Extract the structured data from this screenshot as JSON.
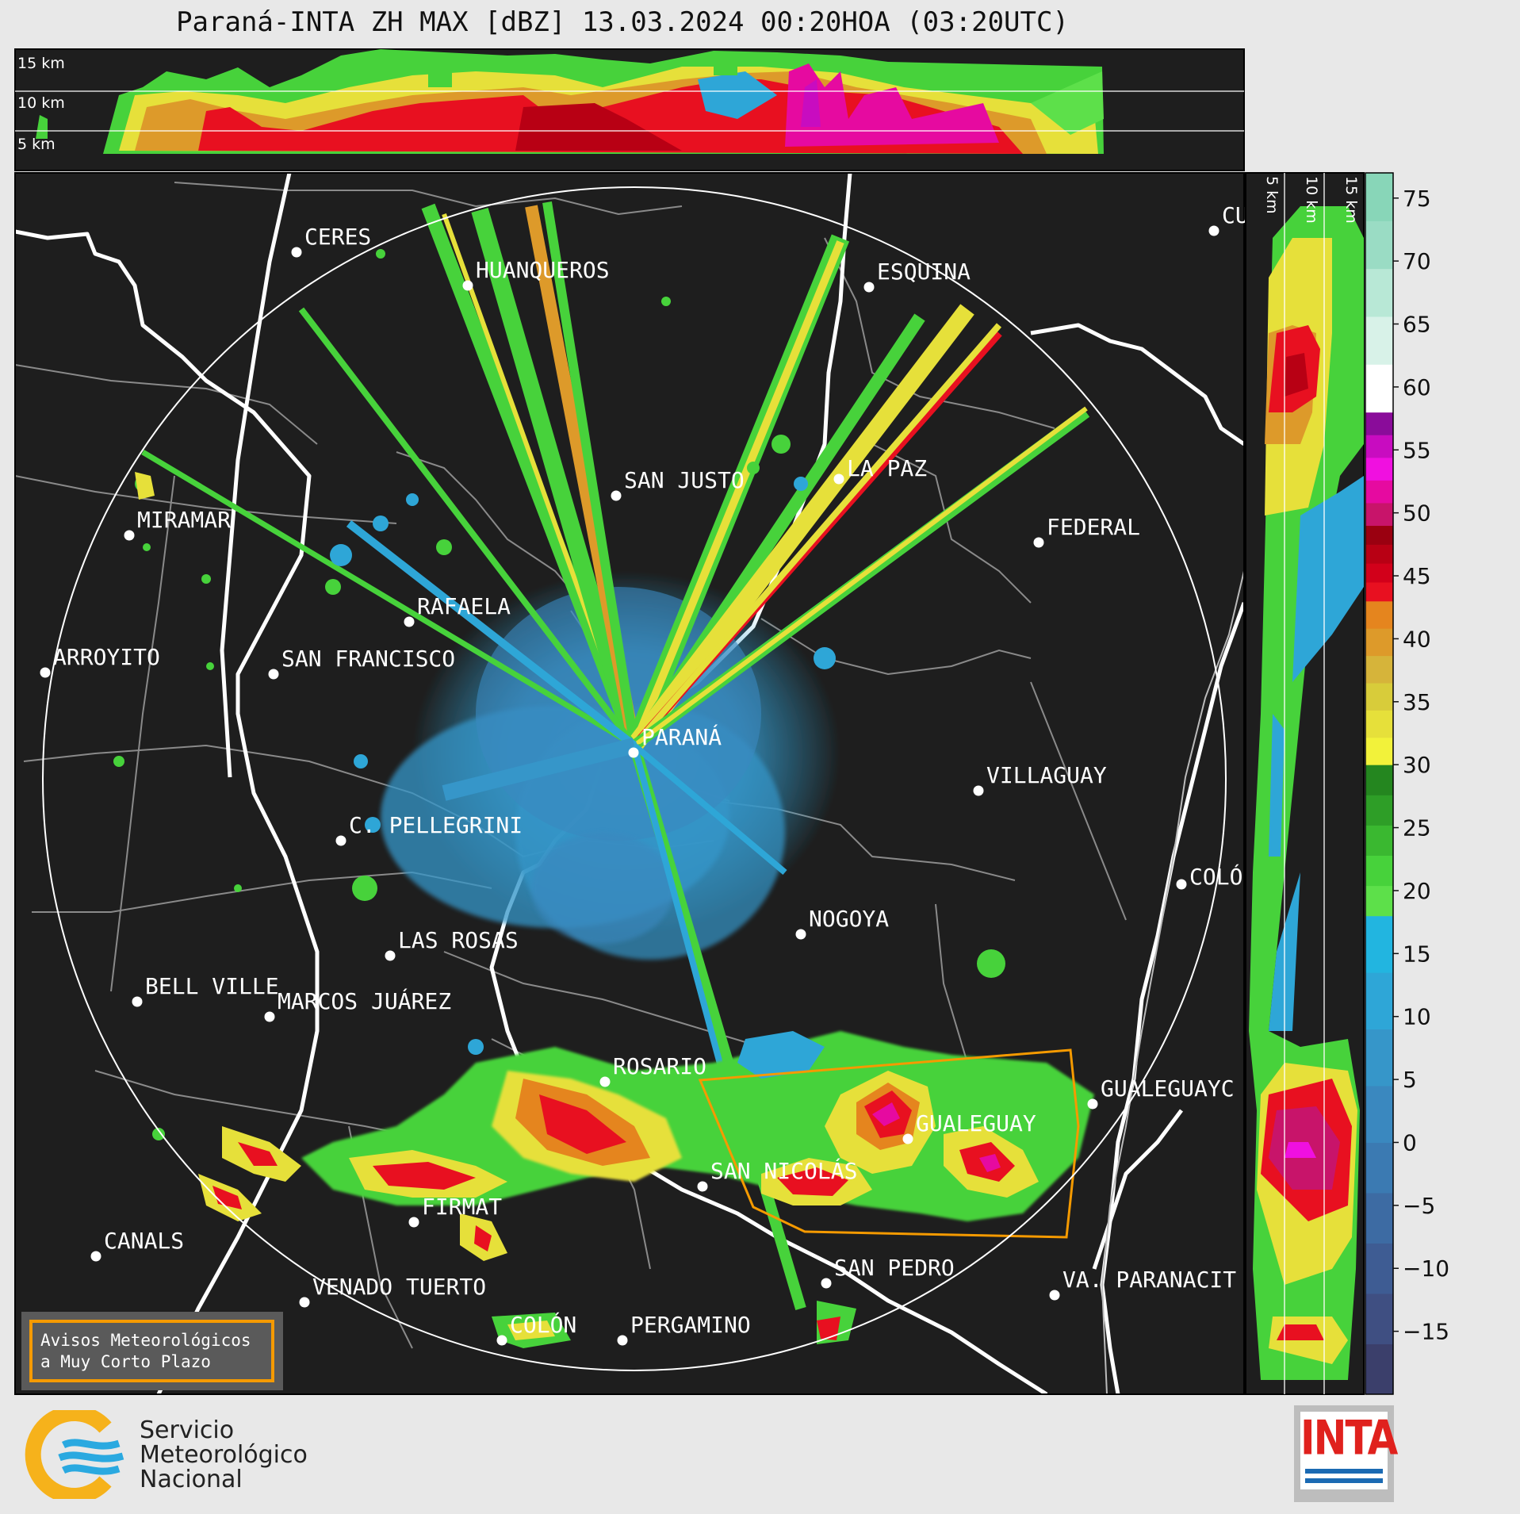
{
  "title": "Paraná-INTA ZH MAX [dBZ] 13.03.2024 00:20HOA (03:20UTC)",
  "top_panel": {
    "altitude_labels": [
      "15 km",
      "10 km",
      "5 km"
    ]
  },
  "right_panel": {
    "altitude_labels": [
      "5 km",
      "10 km",
      "15 km"
    ]
  },
  "colorbar": {
    "unit": "dBZ",
    "ticks": [
      "75",
      "70",
      "65",
      "60",
      "55",
      "50",
      "45",
      "40",
      "35",
      "30",
      "25",
      "20",
      "15",
      "10",
      "5",
      "0",
      "−5",
      "−10",
      "−15"
    ],
    "range": [
      -20,
      77
    ],
    "bands": [
      {
        "from": -20,
        "to": 0,
        "colors": [
          "#3b3f6b",
          "#3f4f82",
          "#3e5c93",
          "#3d6ba3",
          "#3b7ab2"
        ]
      },
      {
        "from": 0,
        "to": 18,
        "colors": [
          "#3a88bf",
          "#3696c9",
          "#2ea6d7",
          "#22b5e0"
        ]
      },
      {
        "from": 18,
        "to": 30,
        "colors": [
          "#5de04a",
          "#47d23b",
          "#3ab830",
          "#2e9e27",
          "#24861f"
        ]
      },
      {
        "from": 30,
        "to": 43,
        "colors": [
          "#f2f23a",
          "#e6e03a",
          "#d8cc3a",
          "#d6b43a",
          "#dd9a2a",
          "#e5851e"
        ]
      },
      {
        "from": 43,
        "to": 49,
        "colors": [
          "#e81020",
          "#d2001a",
          "#b80014",
          "#9a0010"
        ]
      },
      {
        "from": 49,
        "to": 58,
        "colors": [
          "#c8146a",
          "#e60aa0",
          "#f010e0",
          "#c80cc0",
          "#8a0c9a"
        ]
      },
      {
        "from": 58,
        "to": 77,
        "colors": [
          "#ffffff",
          "#d8f2e8",
          "#b8e8d6",
          "#9adcc4",
          "#88d6b8"
        ]
      }
    ]
  },
  "cities": [
    {
      "name": "CERES"
    },
    {
      "name": "HUANQUEROS"
    },
    {
      "name": "ESQUINA"
    },
    {
      "name": "CU"
    },
    {
      "name": "SAN JUSTO"
    },
    {
      "name": "LA PAZ"
    },
    {
      "name": "MIRAMAR"
    },
    {
      "name": "FEDERAL"
    },
    {
      "name": "RAFAELA"
    },
    {
      "name": "ARROYITO"
    },
    {
      "name": "SAN FRANCISCO"
    },
    {
      "name": "PARANÁ"
    },
    {
      "name": "VILLAGUAY"
    },
    {
      "name": "C. PELLEGRINI"
    },
    {
      "name": "COLÓ"
    },
    {
      "name": "NOGOYA"
    },
    {
      "name": "LAS ROSAS"
    },
    {
      "name": "BELL VILLE"
    },
    {
      "name": "MARCOS JUÁREZ"
    },
    {
      "name": "ROSARIO"
    },
    {
      "name": "GUALEGUAYC"
    },
    {
      "name": "GUALEGUAY"
    },
    {
      "name": "SAN NICOLÁS"
    },
    {
      "name": "FIRMAT"
    },
    {
      "name": "CANALS"
    },
    {
      "name": "SAN PEDRO"
    },
    {
      "name": "VENADO TUERTO"
    },
    {
      "name": "VA. PARANACIT"
    },
    {
      "name": "COLÓN"
    },
    {
      "name": "PERGAMINO"
    }
  ],
  "warning_box": {
    "line1": "Avisos Meteorológicos",
    "line2": "a Muy Corto Plazo",
    "color": "#f59a00"
  },
  "footer": {
    "sml_name": [
      "Servicio",
      "Meteorológico",
      "Nacional"
    ],
    "inta_word": "INTA"
  },
  "colors": {
    "map_bg": "#1e1e1e",
    "borders": "#8a8a8a",
    "rivers": "#ffffff",
    "range_ring": "#ffffff",
    "warning_polygon": "#f59a00"
  }
}
